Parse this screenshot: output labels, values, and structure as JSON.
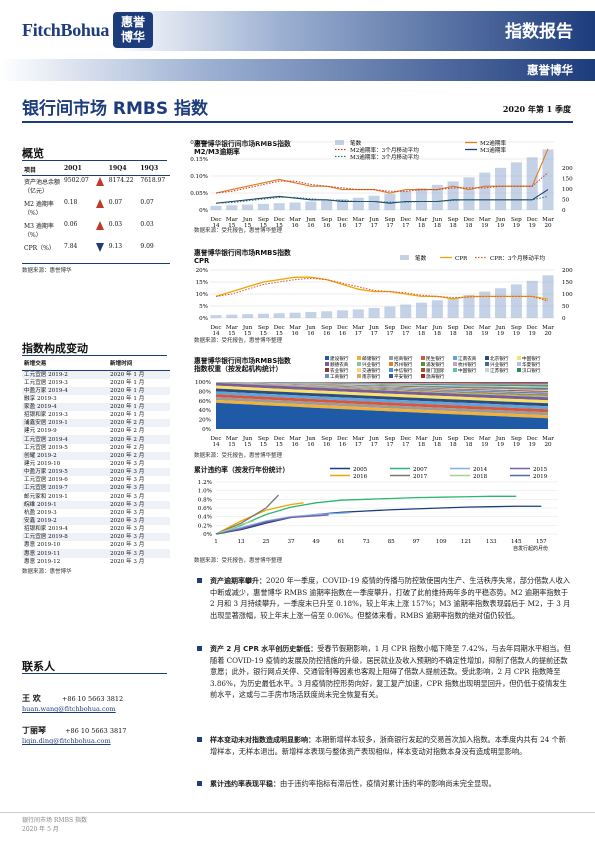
{
  "header": {
    "logo_text": "FitchBohua",
    "logo_seal_l1": "惠誉",
    "logo_seal_l2": "博华",
    "report_type": "指数报告",
    "brand_cn": "惠誉博华"
  },
  "title": "银行间市场 RMBS 指数",
  "period": "2020 年第 1 季度",
  "overview": {
    "title": "概览",
    "headers": [
      "项目",
      "20Q1",
      "",
      "19Q4",
      "19Q3"
    ],
    "rows": [
      {
        "label": "资产池总余额（亿元）",
        "q1": "9502.07",
        "trend": "up",
        "q4": "8174.22",
        "q3": "7618.97"
      },
      {
        "label": "M2 逾期率（%）",
        "q1": "0.18",
        "trend": "up",
        "q4": "0.07",
        "q3": "0.07"
      },
      {
        "label": "M3 逾期率（%）",
        "q1": "0.06",
        "trend": "up",
        "q4": "0.03",
        "q3": "0.03"
      },
      {
        "label": "CPR（%）",
        "q1": "7.84",
        "trend": "down",
        "q4": "9.13",
        "q3": "9.09"
      }
    ],
    "source": "数据来源：惠誉博华"
  },
  "changes": {
    "title": "指数构成变动",
    "headers": [
      "新增交易",
      "新增时间"
    ],
    "rows": [
      [
        "工元宜居 2019-2",
        "2020 年 1 月"
      ],
      [
        "工元宜居 2019-3",
        "2020 年 1 月"
      ],
      [
        "中盈万家 2019-4",
        "2020 年 1 月"
      ],
      [
        "融享 2019-3",
        "2020 年 1 月"
      ],
      [
        "家盈 2019-4",
        "2020 年 1 月"
      ],
      [
        "招银和家 2019-3",
        "2020 年 1 月"
      ],
      [
        "浦鑫安居 2019-1",
        "2020 年 2 月"
      ],
      [
        "建元 2019-9",
        "2020 年 2 月"
      ],
      [
        "工元宜居 2019-4",
        "2020 年 2 月"
      ],
      [
        "工元宜居 2019-5",
        "2020 年 2 月"
      ],
      [
        "创耀 2019-2",
        "2020 年 2 月"
      ],
      [
        "建元 2019-10",
        "2020 年 3 月"
      ],
      [
        "中盈万家 2019-5",
        "2020 年 3 月"
      ],
      [
        "工元宜居 2019-6",
        "2020 年 3 月"
      ],
      [
        "工元宜居 2019-7",
        "2020 年 3 月"
      ],
      [
        "邮元家和 2019-1",
        "2020 年 3 月"
      ],
      [
        "皖维 2019-1",
        "2020 年 3 月"
      ],
      [
        "杭盈 2019-3",
        "2020 年 3 月"
      ],
      [
        "安鑫 2019-2",
        "2020 年 3 月"
      ],
      [
        "招银和家 2019-4",
        "2020 年 3 月"
      ],
      [
        "工元宜居 2019-8",
        "2020 年 3 月"
      ],
      [
        "惠意 2019-10",
        "2020 年 3 月"
      ],
      [
        "惠意 2019-11",
        "2020 年 3 月"
      ],
      [
        "惠意 2019-12",
        "2020 年 3 月"
      ]
    ],
    "source": "数据来源：惠誉博华"
  },
  "contacts": {
    "title": "联系人",
    "people": [
      {
        "name": "王  欢",
        "phone": "+86 10 5663 3812",
        "email": "huan.wang@fitchbohua.com"
      },
      {
        "name": "丁丽琴",
        "phone": "+86 10 5663 3817",
        "email": "liqin.ding@fitchbohua.com"
      }
    ]
  },
  "charts": [
    {
      "title_l1": "惠誉博华银行间市场RMBS指数",
      "title_l2": "M2/M3逾期率",
      "source": "数据来源：受托报告，惠誉博华整理"
    },
    {
      "title_l1": "惠誉博华银行间市场RMBS指数",
      "title_l2": "CPR",
      "source": "数据来源：受托报告，惠誉博华整理"
    },
    {
      "title_l1": "惠誉博华银行间市场RMBS指数",
      "title_l2": "指数权重（按发起机构统计）",
      "source": "数据来源：受托报告，惠誉博华整理"
    },
    {
      "title_l1": "累计违约率（按发行年份统计）",
      "title_l2": "",
      "source": "数据来源：受托报告，惠誉博华整理",
      "note": "自发行起的月份"
    }
  ],
  "bullets": [
    {
      "head": "资产逾期率攀升：",
      "body": "2020 年一季度，COVID-19 疫情的传播与防控致使国内生产、生活秩序失常，部分借款人收入中断或减少，惠誉博华 RMBS 逾期率指数在一季度攀升，打破了此前维持两年多的平稳态势。M2 逾期率指数于 2 月和 3 月持续攀升，一季度末已升至 0.18%，较上年末上涨 157%；M3 逾期率指数表现弱后于 M2，于 3 月出现显著涨幅，较上年末上涨一倍至 0.06%。但整体来看，RMBS 逾期率指数的绝对值仍较低。"
    },
    {
      "head": "资产 2 月 CPR 水平创历史新低：",
      "body": "受春节假期影响，1 月 CPR 指数小幅下降至 7.42%，与去年同期水平相当。但随着 COVID-19 疫情的发展及防控措施的升级，居民就业及收入预期的不确定性增加，抑制了借款人的提前还款意愿；此外，银行网点关停、交通管制等因素也客观上阻碍了借款人提前还款。受此影响，2 月 CPR 指数降至 3.86%，为历史最低水平。3 月疫情防控形势向好，复工复产加速，CPR 指数出现明显回升，但仍低于疫情发生前水平，这或与二手房市场活跃度尚未完全恢复有关。"
    },
    {
      "head": "样本变动未对指数造成明显影响：",
      "body": "本期新增样本较多，浙商银行发起的交易首次加入指数。本季度内共有 24 个新增样本，无样本退出。新增样本表现与整体资产表现相似，样本变动对指数本身没有造成明显影响。"
    },
    {
      "head": "累计违约率表现平稳：",
      "body": "由于违约率指标有滞后性，疫情对累计违约率的影响尚未完全显现。"
    }
  ],
  "chart_data": [
    {
      "type": "line",
      "title": "惠誉博华银行间市场RMBS指数 M2/M3逾期率",
      "x": [
        "Dec 14",
        "Mar 15",
        "Jun 15",
        "Sep 15",
        "Dec 15",
        "Mar 16",
        "Jun 16",
        "Sep 16",
        "Dec 16",
        "Mar 17",
        "Jun 17",
        "Sep 17",
        "Dec 17",
        "Mar 18",
        "Jun 18",
        "Sep 18",
        "Dec 18",
        "Mar 19",
        "Jun 19",
        "Sep 19",
        "Dec 19",
        "Mar 20"
      ],
      "ylim": [
        0,
        0.2
      ],
      "yticks": [
        "0%",
        "0.05%",
        "0.10%",
        "0.15%",
        "0.20%"
      ],
      "y2lim": [
        0,
        200
      ],
      "y2ticks": [
        "0",
        "50",
        "100",
        "150",
        "200"
      ],
      "series": [
        {
          "name": "笔数",
          "axis": "right",
          "values": [
            12,
            14,
            16,
            18,
            20,
            22,
            25,
            28,
            32,
            36,
            42,
            48,
            56,
            64,
            74,
            84,
            96,
            110,
            124,
            140,
            155,
            178
          ]
        },
        {
          "name": "M2逾期率",
          "values": [
            0.05,
            0.06,
            0.07,
            0.08,
            0.09,
            0.08,
            0.07,
            0.07,
            0.06,
            0.06,
            0.06,
            0.05,
            0.06,
            0.06,
            0.06,
            0.07,
            0.06,
            0.07,
            0.07,
            0.07,
            0.07,
            0.18
          ]
        },
        {
          "name": "M3逾期率",
          "values": [
            0.02,
            0.025,
            0.03,
            0.035,
            0.04,
            0.035,
            0.03,
            0.03,
            0.025,
            0.025,
            0.025,
            0.02,
            0.025,
            0.025,
            0.025,
            0.03,
            0.03,
            0.03,
            0.03,
            0.03,
            0.03,
            0.06
          ]
        },
        {
          "name": "M2逾期率：3个月移动平均",
          "values": [
            0.05,
            0.055,
            0.065,
            0.075,
            0.085,
            0.085,
            0.075,
            0.07,
            0.065,
            0.06,
            0.06,
            0.055,
            0.055,
            0.06,
            0.06,
            0.065,
            0.065,
            0.065,
            0.07,
            0.07,
            0.07,
            0.11
          ]
        },
        {
          "name": "M3逾期率：3个月移动平均",
          "values": [
            0.02,
            0.022,
            0.027,
            0.032,
            0.037,
            0.037,
            0.033,
            0.03,
            0.028,
            0.025,
            0.025,
            0.023,
            0.023,
            0.025,
            0.025,
            0.028,
            0.03,
            0.03,
            0.03,
            0.03,
            0.03,
            0.04
          ]
        }
      ]
    },
    {
      "type": "line",
      "title": "惠誉博华银行间市场RMBS指数 CPR",
      "x": [
        "Dec 14",
        "Mar 15",
        "Jun 15",
        "Sep 15",
        "Dec 15",
        "Mar 16",
        "Jun 16",
        "Sep 16",
        "Dec 16",
        "Mar 17",
        "Jun 17",
        "Sep 17",
        "Dec 17",
        "Mar 18",
        "Jun 18",
        "Sep 18",
        "Dec 18",
        "Mar 19",
        "Jun 19",
        "Sep 19",
        "Dec 19",
        "Mar 20"
      ],
      "ylim": [
        0,
        20
      ],
      "yticks": [
        "0%",
        "5%",
        "10%",
        "15%",
        "20%"
      ],
      "y2lim": [
        0,
        200
      ],
      "y2ticks": [
        "0",
        "50",
        "100",
        "150",
        "200"
      ],
      "series": [
        {
          "name": "笔数",
          "axis": "right",
          "values": [
            12,
            14,
            16,
            18,
            20,
            22,
            25,
            28,
            32,
            36,
            42,
            48,
            56,
            64,
            74,
            84,
            96,
            110,
            124,
            140,
            155,
            178
          ]
        },
        {
          "name": "CPR",
          "values": [
            9,
            11,
            13,
            15,
            16,
            17,
            17,
            16,
            14,
            12,
            11,
            11,
            10,
            9,
            9,
            8,
            9,
            9,
            9,
            9,
            9,
            7.8
          ]
        },
        {
          "name": "CPR：3个月移动平均",
          "values": [
            9,
            10,
            12,
            14,
            15,
            16,
            16.5,
            16,
            14.5,
            13,
            11.5,
            11,
            10.5,
            9.5,
            9,
            8.5,
            8.7,
            9,
            9,
            9,
            9,
            7
          ]
        }
      ]
    },
    {
      "type": "area",
      "title": "惠誉博华银行间市场RMBS指数 指数权重（按发起机构统计）",
      "x": [
        "Dec 14",
        "Mar 15",
        "Jun 15",
        "Sep 15",
        "Dec 15",
        "Mar 16",
        "Jun 16",
        "Sep 16",
        "Dec 16",
        "Mar 17",
        "Jun 17",
        "Sep 17",
        "Dec 17",
        "Mar 18",
        "Jun 18",
        "Sep 18",
        "Dec 18",
        "Mar 19",
        "Jun 19",
        "Sep 19",
        "Dec 19",
        "Mar 20"
      ],
      "ylim": [
        0,
        100
      ],
      "yticks": [
        "0%",
        "20%",
        "40%",
        "60%",
        "80%",
        "100%"
      ],
      "legend": [
        "建设银行",
        "邮储银行",
        "招商银行",
        "民生银行",
        "江南农商",
        "北京银行",
        "中国银行",
        "顺德农商",
        "兴业银行",
        "苏州银行",
        "浦发银行",
        "杭州银行",
        "兴业银行",
        "华夏银行",
        "农业银行",
        "交通银行",
        "中信银行",
        "厦门国际",
        "中国银行",
        "江苏银行",
        "汉口银行",
        "工商银行",
        "南京银行",
        "平安银行",
        "渤海银行"
      ],
      "colors": [
        "#1f5aa6",
        "#f2b134",
        "#9b9b9b",
        "#d9553b",
        "#5da5da",
        "#2f4b7c",
        "#f7e36b",
        "#7a5c99",
        "#88c0a8",
        "#e67e22",
        "#5b8f3a",
        "#c8a2c8",
        "#3a6f9a",
        "#b0c4de",
        "#8b3a3a",
        "#ffd280",
        "#4a90e2",
        "#a0522d",
        "#66c2a5",
        "#d0d0d0",
        "#2e8b57",
        "#6a8ec8",
        "#e0a458",
        "#3b5998",
        "#b22222"
      ]
    },
    {
      "type": "line",
      "title": "累计违约率（按发行年份统计）",
      "xticks": [
        "1",
        "13",
        "25",
        "37",
        "49",
        "61",
        "73",
        "85",
        "97",
        "109",
        "121",
        "133",
        "145",
        "157"
      ],
      "xlim": [
        1,
        165
      ],
      "ylim": [
        0,
        1.2
      ],
      "yticks": [
        "0%",
        "0.2%",
        "0.4%",
        "0.6%",
        "0.8%",
        "1.0%",
        "1.2%"
      ],
      "series": [
        {
          "name": "2005",
          "values": [
            [
              1,
              0
            ],
            [
              13,
              0.1
            ],
            [
              25,
              0.25
            ],
            [
              37,
              0.38
            ],
            [
              49,
              0.45
            ],
            [
              61,
              0.5
            ],
            [
              73,
              0.53
            ],
            [
              85,
              0.56
            ],
            [
              97,
              0.58
            ],
            [
              109,
              0.6
            ],
            [
              121,
              0.62
            ],
            [
              133,
              0.63
            ],
            [
              145,
              0.64
            ],
            [
              157,
              0.64
            ]
          ]
        },
        {
          "name": "2007",
          "values": [
            [
              1,
              0
            ],
            [
              13,
              0.2
            ],
            [
              25,
              0.45
            ],
            [
              37,
              0.62
            ],
            [
              49,
              0.72
            ],
            [
              61,
              0.78
            ],
            [
              73,
              0.8
            ],
            [
              85,
              0.82
            ],
            [
              97,
              0.84
            ],
            [
              109,
              0.85
            ],
            [
              121,
              0.86
            ],
            [
              133,
              0.87
            ],
            [
              145,
              0.87
            ]
          ]
        },
        {
          "name": "2014",
          "values": [
            [
              1,
              0
            ],
            [
              13,
              0.15
            ],
            [
              25,
              0.3
            ],
            [
              37,
              0.4
            ],
            [
              49,
              0.45
            ],
            [
              61,
              0.48
            ],
            [
              65,
              0.49
            ]
          ]
        },
        {
          "name": "2015",
          "values": [
            [
              1,
              0
            ],
            [
              13,
              0.12
            ],
            [
              25,
              0.28
            ],
            [
              37,
              0.38
            ],
            [
              49,
              0.42
            ],
            [
              55,
              0.44
            ]
          ]
        },
        {
          "name": "2016",
          "values": [
            [
              1,
              0
            ],
            [
              13,
              0.3
            ],
            [
              25,
              0.55
            ],
            [
              37,
              0.68
            ],
            [
              43,
              0.72
            ]
          ]
        },
        {
          "name": "2017",
          "values": [
            [
              1,
              0
            ],
            [
              13,
              0.25
            ],
            [
              25,
              0.6
            ],
            [
              31,
              0.9
            ]
          ]
        },
        {
          "name": "2018",
          "values": [
            [
              1,
              0
            ],
            [
              7,
              0.1
            ],
            [
              13,
              0.22
            ],
            [
              19,
              0.3
            ]
          ]
        },
        {
          "name": "2019",
          "values": [
            [
              1,
              0
            ],
            [
              4,
              0.02
            ],
            [
              7,
              0.05
            ]
          ]
        }
      ]
    }
  ],
  "footer": {
    "line1": "银行间市场 RMBS 指数",
    "line2": "2020 年 5 月"
  }
}
